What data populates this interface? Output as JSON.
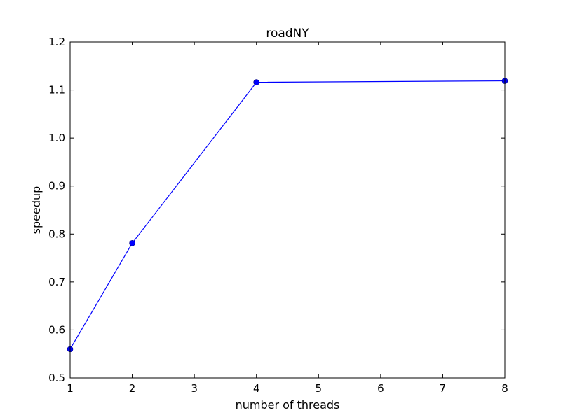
{
  "chart_data": {
    "type": "line",
    "title": "roadNY",
    "xlabel": "number of threads",
    "ylabel": "speedup",
    "xlim": [
      1,
      8
    ],
    "ylim": [
      0.5,
      1.2
    ],
    "xticks": [
      "1",
      "2",
      "3",
      "4",
      "5",
      "6",
      "7",
      "8"
    ],
    "yticks": [
      "0.5",
      "0.6",
      "0.7",
      "0.8",
      "0.9",
      "1.0",
      "1.1",
      "1.2"
    ],
    "grid": false,
    "legend": false,
    "series": [
      {
        "x": [
          1,
          2,
          4,
          8
        ],
        "y": [
          0.56,
          0.781,
          1.116,
          1.119
        ],
        "color": "#0000ff",
        "marker": "circle"
      }
    ]
  }
}
